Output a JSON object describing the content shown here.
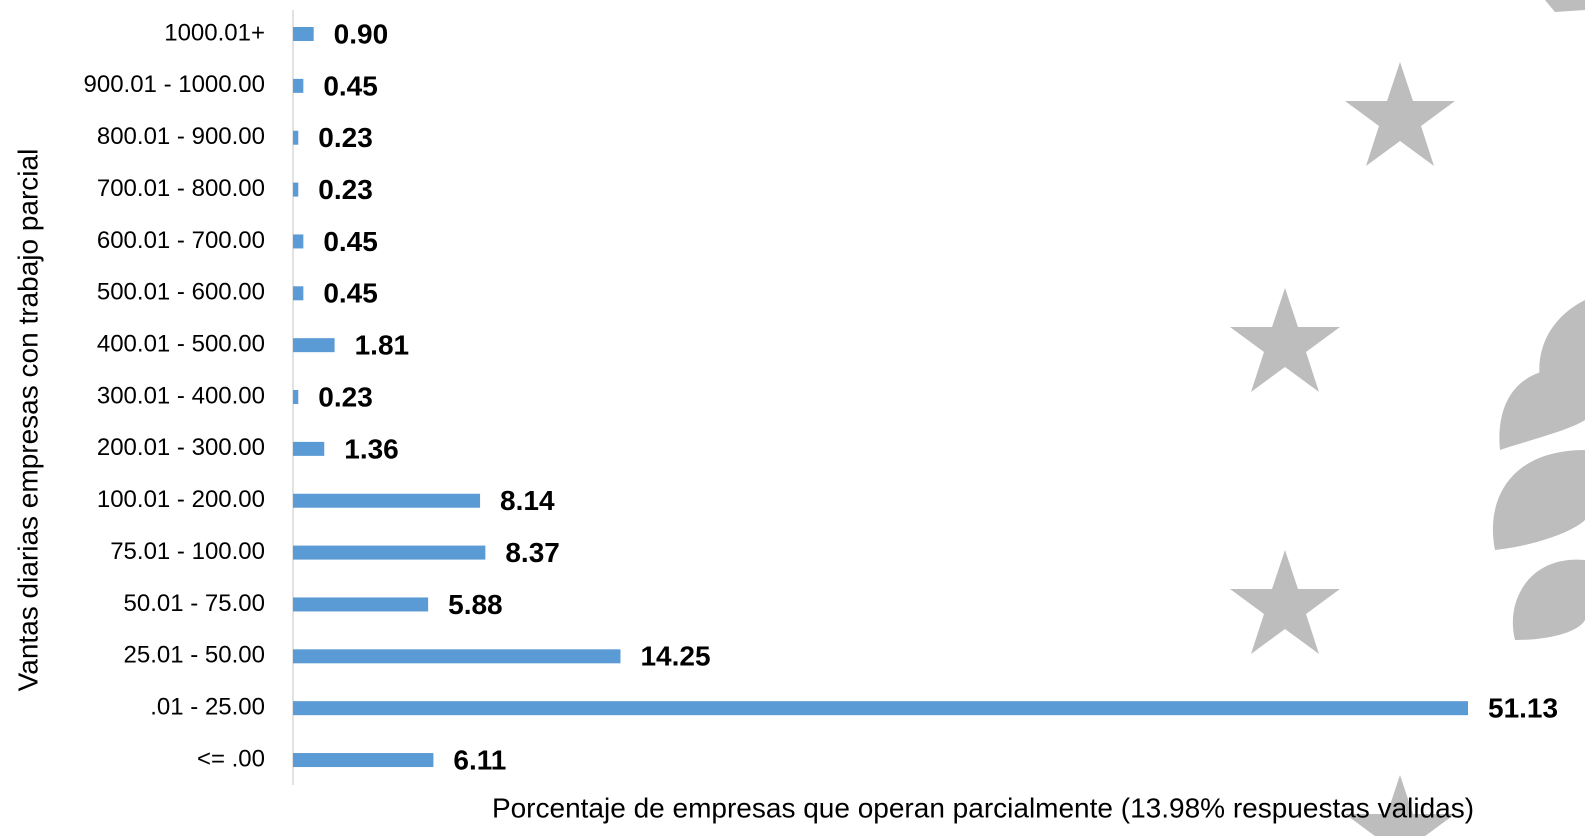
{
  "chart_data": {
    "type": "bar",
    "orientation": "horizontal",
    "x_label": "Porcentaje de empresas que operan parcialmente (13.98% respuestas validas)",
    "y_label": "Vantas diarias empresas con trabajo parcial",
    "categories": [
      "1000.01+",
      "900.01 - 1000.00",
      "800.01 - 900.00",
      "700.01 - 800.00",
      "600.01 - 700.00",
      "500.01 - 600.00",
      "400.01 - 500.00",
      "300.01 - 400.00",
      "200.01 - 300.00",
      "100.01 - 200.00",
      "75.01 - 100.00",
      "50.01 - 75.00",
      "25.01 - 50.00",
      ".01 - 25.00",
      "<= .00"
    ],
    "values": [
      0.9,
      0.45,
      0.23,
      0.23,
      0.45,
      0.45,
      1.81,
      0.23,
      1.36,
      8.14,
      8.37,
      5.88,
      14.25,
      51.13,
      6.11
    ],
    "color": "#5b9bd5"
  }
}
